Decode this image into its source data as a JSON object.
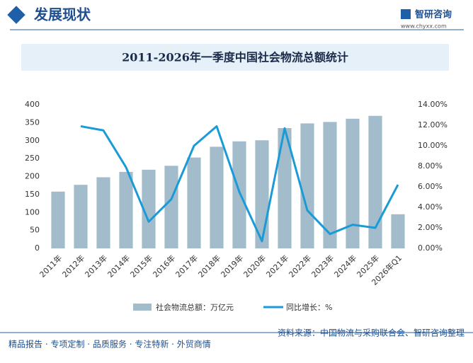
{
  "header": {
    "title": "发展现状",
    "brand": "智研咨询",
    "url": "www.chyxx.com"
  },
  "chart_data": {
    "type": "bar_line",
    "title": "2011-2026年一季度中国社会物流总额统计",
    "categories": [
      "2011年",
      "2012年",
      "2013年",
      "2014年",
      "2015年",
      "2016年",
      "2017年",
      "2018年",
      "2019年",
      "2020年",
      "2021年",
      "2022年",
      "2023年",
      "2024年",
      "2025年",
      "2026年Q1"
    ],
    "series": [
      {
        "name": "社会物流总额：万亿元",
        "color": "#a3bccb",
        "type": "bar",
        "values": [
          158,
          177,
          198,
          213,
          219,
          230,
          253,
          283,
          298,
          301,
          335,
          348,
          352,
          361,
          369,
          95
        ]
      },
      {
        "name": "同比增长：%",
        "color": "#1a9bd7",
        "type": "line",
        "axis": "y2",
        "values": [
          null,
          11.9,
          11.5,
          7.9,
          2.6,
          4.8,
          10.0,
          11.9,
          5.5,
          0.7,
          11.7,
          3.7,
          1.4,
          2.3,
          2.0,
          6.2
        ]
      }
    ],
    "ylim": [
      0,
      400
    ],
    "yticks": [
      0,
      50,
      100,
      150,
      200,
      250,
      300,
      350,
      400
    ],
    "y2lim": [
      0,
      14
    ],
    "y2ticks": [
      {
        "value": 0,
        "label": "0.00%"
      },
      {
        "value": 2,
        "label": "2.00%"
      },
      {
        "value": 4,
        "label": "4.00%"
      },
      {
        "value": 6,
        "label": "6.00%"
      },
      {
        "value": 8,
        "label": "8.00%"
      },
      {
        "value": 10,
        "label": "10.00%"
      },
      {
        "value": 12,
        "label": "12.00%"
      },
      {
        "value": 14,
        "label": "14.00%"
      }
    ]
  },
  "footer": {
    "services": "精品报告 · 专项定制 · 品质服务 · 专注特新 · 外贸商情",
    "source": "资料来源：中国物流与采购联合会、智研咨询整理"
  }
}
